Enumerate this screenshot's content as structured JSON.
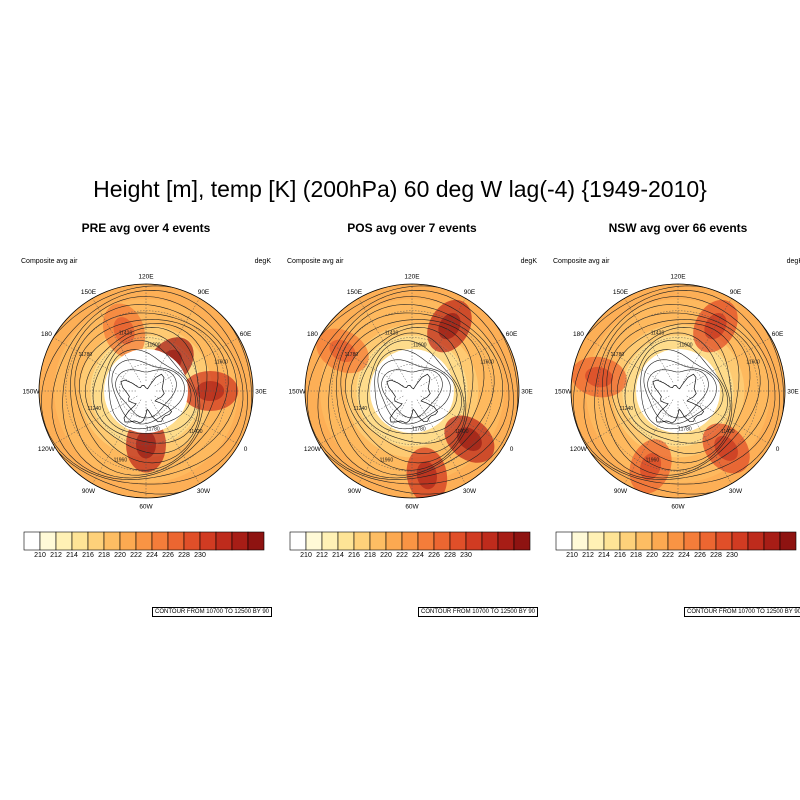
{
  "figure": {
    "title": "Height [m], temp [K] (200hPa) 60 deg W lag(-4) {1949-2010}"
  },
  "map_common": {
    "left_label": "Composite avg air",
    "right_label": "degK",
    "contour_info": "CONTOUR FROM 10700 TO 12500 BY 90",
    "lon_labels": [
      "120E",
      "90E",
      "60E",
      "30E",
      "0",
      "30W",
      "60W",
      "90W",
      "120W",
      "150W",
      "180",
      "150E"
    ],
    "contour_value_labels": [
      "11420",
      "11600",
      "11780",
      "11240",
      "11960"
    ]
  },
  "panels": [
    {
      "title": "PRE avg over 4 events",
      "hot_spots": [
        {
          "lon": 160,
          "r": 0.35,
          "level": 0.95
        },
        {
          "lon": -60,
          "r": 0.5,
          "level": 0.9
        },
        {
          "lon": -150,
          "r": 0.6,
          "level": 0.7
        },
        {
          "lon": 100,
          "r": 0.6,
          "level": 0.35
        }
      ]
    },
    {
      "title": "POS avg over 7 events",
      "hot_spots": [
        {
          "lon": 150,
          "r": 0.7,
          "level": 0.9
        },
        {
          "lon": -110,
          "r": 0.7,
          "level": 0.9
        },
        {
          "lon": -70,
          "r": 0.8,
          "level": 0.75
        },
        {
          "lon": 60,
          "r": 0.75,
          "level": 0.35
        }
      ]
    },
    {
      "title": "NSW avg over 66 events",
      "hot_spots": [
        {
          "lon": 150,
          "r": 0.7,
          "level": 0.6
        },
        {
          "lon": -100,
          "r": 0.7,
          "level": 0.6
        },
        {
          "lon": -40,
          "r": 0.75,
          "level": 0.5
        },
        {
          "lon": 40,
          "r": 0.75,
          "level": 0.45
        }
      ]
    }
  ],
  "colorbar": {
    "ticks": [
      "210",
      "212",
      "214",
      "216",
      "218",
      "220",
      "222",
      "224",
      "226",
      "228",
      "230"
    ],
    "colors": [
      "#ffffff",
      "#fffad7",
      "#fff1b5",
      "#fee496",
      "#fed17a",
      "#fdbd63",
      "#fca951",
      "#f99444",
      "#f47d3a",
      "#ec6631",
      "#e04f29",
      "#d13b22",
      "#be2b1c",
      "#a71d16",
      "#8e1311"
    ]
  }
}
